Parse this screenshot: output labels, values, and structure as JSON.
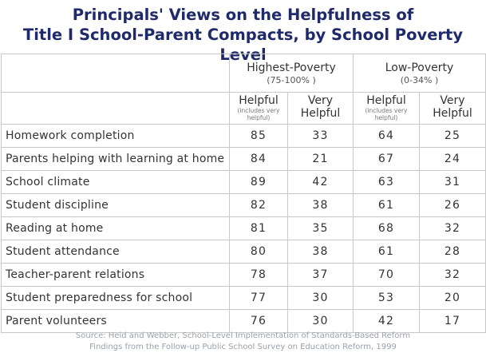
{
  "title_lines": [
    "Principals' Views on the Helpfulness of",
    "Title I School-Parent Compacts, by School Poverty Level"
  ],
  "groups": [
    {
      "name": "Highest-Poverty",
      "range": "(75-100%  )"
    },
    {
      "name": "Low-Poverty",
      "range": "(0-34% )"
    }
  ],
  "subheaders": [
    {
      "label": "Helpful",
      "note": "(includes very helpful)"
    },
    {
      "label": "Very Helpful",
      "note": ""
    },
    {
      "label": "Helpful",
      "note": "(includes very helpful)"
    },
    {
      "label": "Very Helpful",
      "note": ""
    }
  ],
  "rows": [
    {
      "label": "Homework completion",
      "values": [
        "85",
        "33",
        "64",
        "25"
      ]
    },
    {
      "label": "Parents helping with learning at home",
      "values": [
        "84",
        "21",
        "67",
        "24"
      ]
    },
    {
      "label": "School climate",
      "values": [
        "89",
        "42",
        "63",
        "31"
      ]
    },
    {
      "label": "Student discipline",
      "values": [
        "82",
        "38",
        "61",
        "26"
      ]
    },
    {
      "label": "Reading at home",
      "values": [
        "81",
        "35",
        "68",
        "32"
      ]
    },
    {
      "label": "Student attendance",
      "values": [
        "80",
        "38",
        "61",
        "28"
      ]
    },
    {
      "label": "Teacher-parent relations",
      "values": [
        "78",
        "37",
        "70",
        "32"
      ]
    },
    {
      "label": "Student preparedness for school",
      "values": [
        "77",
        "30",
        "53",
        "20"
      ]
    },
    {
      "label": "Parent volunteers",
      "values": [
        "76",
        "30",
        "42",
        "17"
      ]
    }
  ],
  "source_lines": [
    "Source: Heid and Webber, School-Level Implementation of Standards-Based Reform",
    "Findings from the Follow-up Public School Survey on Education Reform,   1999"
  ],
  "chart_data": {
    "type": "table",
    "title": "Principals' Views on the Helpfulness of Title I School-Parent Compacts, by School Poverty Level",
    "columns": [
      "Highest-Poverty (75-100%  ) Helpful (includes very helpful)",
      "Highest-Poverty (75-100%  ) Very Helpful",
      "Low-Poverty (0-34% ) Helpful (includes very helpful)",
      "Low-Poverty (0-34% ) Very Helpful"
    ],
    "categories": [
      "Homework completion",
      "Parents helping with learning at home",
      "School climate",
      "Student discipline",
      "Reading at home",
      "Student attendance",
      "Teacher-parent relations",
      "Student preparedness for school",
      "Parent volunteers"
    ],
    "series": [
      {
        "name": "Highest-Poverty Helpful",
        "values": [
          85,
          84,
          89,
          82,
          81,
          80,
          78,
          77,
          76
        ]
      },
      {
        "name": "Highest-Poverty Very Helpful",
        "values": [
          33,
          21,
          42,
          38,
          35,
          38,
          37,
          30,
          30
        ]
      },
      {
        "name": "Low-Poverty Helpful",
        "values": [
          64,
          67,
          63,
          61,
          68,
          61,
          70,
          53,
          42
        ]
      },
      {
        "name": "Low-Poverty Very Helpful",
        "values": [
          25,
          24,
          31,
          26,
          32,
          28,
          32,
          20,
          17
        ]
      }
    ]
  }
}
